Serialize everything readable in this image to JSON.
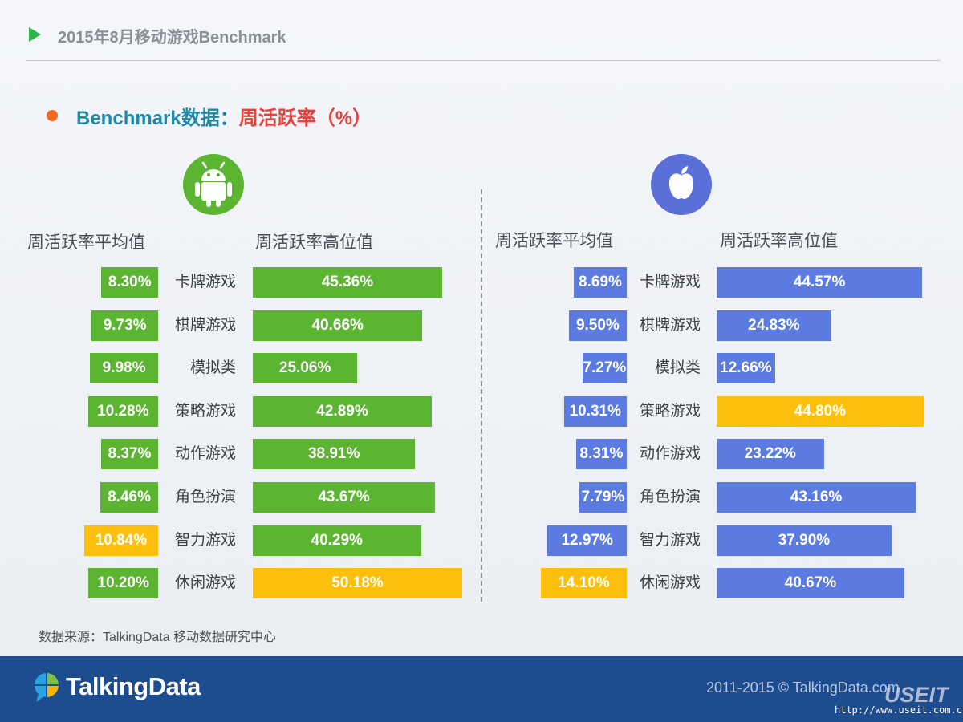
{
  "header": {
    "title": "2015年8月移动游戏Benchmark",
    "subtitle_lead": "Benchmark数据：",
    "subtitle_metric": "周活跃率（%）"
  },
  "icons": {
    "android": "android-robot-icon",
    "ios": "apple-logo-icon"
  },
  "colors": {
    "android_bar": "#5cb531",
    "ios_bar": "#5b7be0",
    "highlight_bar": "#fbbf0c",
    "title_arrow": "#2fb34a",
    "bullet": "#f26a21",
    "subtitle_lead": "#1f8aa8",
    "subtitle_metric": "#e8403d",
    "footer_bg": "#1d4c8f"
  },
  "columns": {
    "avg_label": "周活跃率平均值",
    "high_label": "周活跃率高位值"
  },
  "chart_data": [
    {
      "type": "bar",
      "platform": "android",
      "categories": [
        "卡牌游戏",
        "棋牌游戏",
        "模拟类",
        "策略游戏",
        "动作游戏",
        "角色扮演",
        "智力游戏",
        "休闲游戏"
      ],
      "series": [
        {
          "name": "周活跃率平均值",
          "values": [
            8.3,
            9.73,
            9.98,
            10.28,
            8.37,
            8.46,
            10.84,
            10.2
          ],
          "labels": [
            "8.30%",
            "9.73%",
            "9.98%",
            "10.28%",
            "8.37%",
            "8.46%",
            "10.84%",
            "10.20%"
          ],
          "highlight": [
            false,
            false,
            false,
            false,
            false,
            false,
            true,
            false
          ]
        },
        {
          "name": "周活跃率高位值",
          "values": [
            45.36,
            40.66,
            25.06,
            42.89,
            38.91,
            43.67,
            40.29,
            50.18
          ],
          "labels": [
            "45.36%",
            "40.66%",
            "25.06%",
            "42.89%",
            "38.91%",
            "43.67%",
            "40.29%",
            "50.18%"
          ],
          "highlight": [
            false,
            false,
            false,
            false,
            false,
            false,
            false,
            true
          ]
        }
      ]
    },
    {
      "type": "bar",
      "platform": "ios",
      "categories": [
        "卡牌游戏",
        "棋牌游戏",
        "模拟类",
        "策略游戏",
        "动作游戏",
        "角色扮演",
        "智力游戏",
        "休闲游戏"
      ],
      "series": [
        {
          "name": "周活跃率平均值",
          "values": [
            8.69,
            9.5,
            7.27,
            10.31,
            8.31,
            7.79,
            12.97,
            14.1
          ],
          "labels": [
            "8.69%",
            "9.50%",
            "7.27%",
            "10.31%",
            "8.31%",
            "7.79%",
            "12.97%",
            "14.10%"
          ],
          "highlight": [
            false,
            false,
            false,
            false,
            false,
            false,
            false,
            true
          ]
        },
        {
          "name": "周活跃率高位值",
          "values": [
            44.57,
            24.83,
            12.66,
            44.8,
            23.22,
            43.16,
            37.9,
            40.67
          ],
          "labels": [
            "44.57%",
            "24.83%",
            "12.66%",
            "44.80%",
            "23.22%",
            "43.16%",
            "37.90%",
            "40.67%"
          ],
          "highlight": [
            false,
            false,
            false,
            true,
            false,
            false,
            false,
            false
          ]
        }
      ]
    }
  ],
  "source": "数据来源：TalkingData 移动数据研究中心",
  "footer": {
    "logo_icon": "talkingdata-logo-icon",
    "logo_text": "TalkingData",
    "copyright": "2011-2015 © TalkingData.com"
  },
  "watermark": {
    "name": "USEIT",
    "url": "http://www.useit.com.cn"
  }
}
